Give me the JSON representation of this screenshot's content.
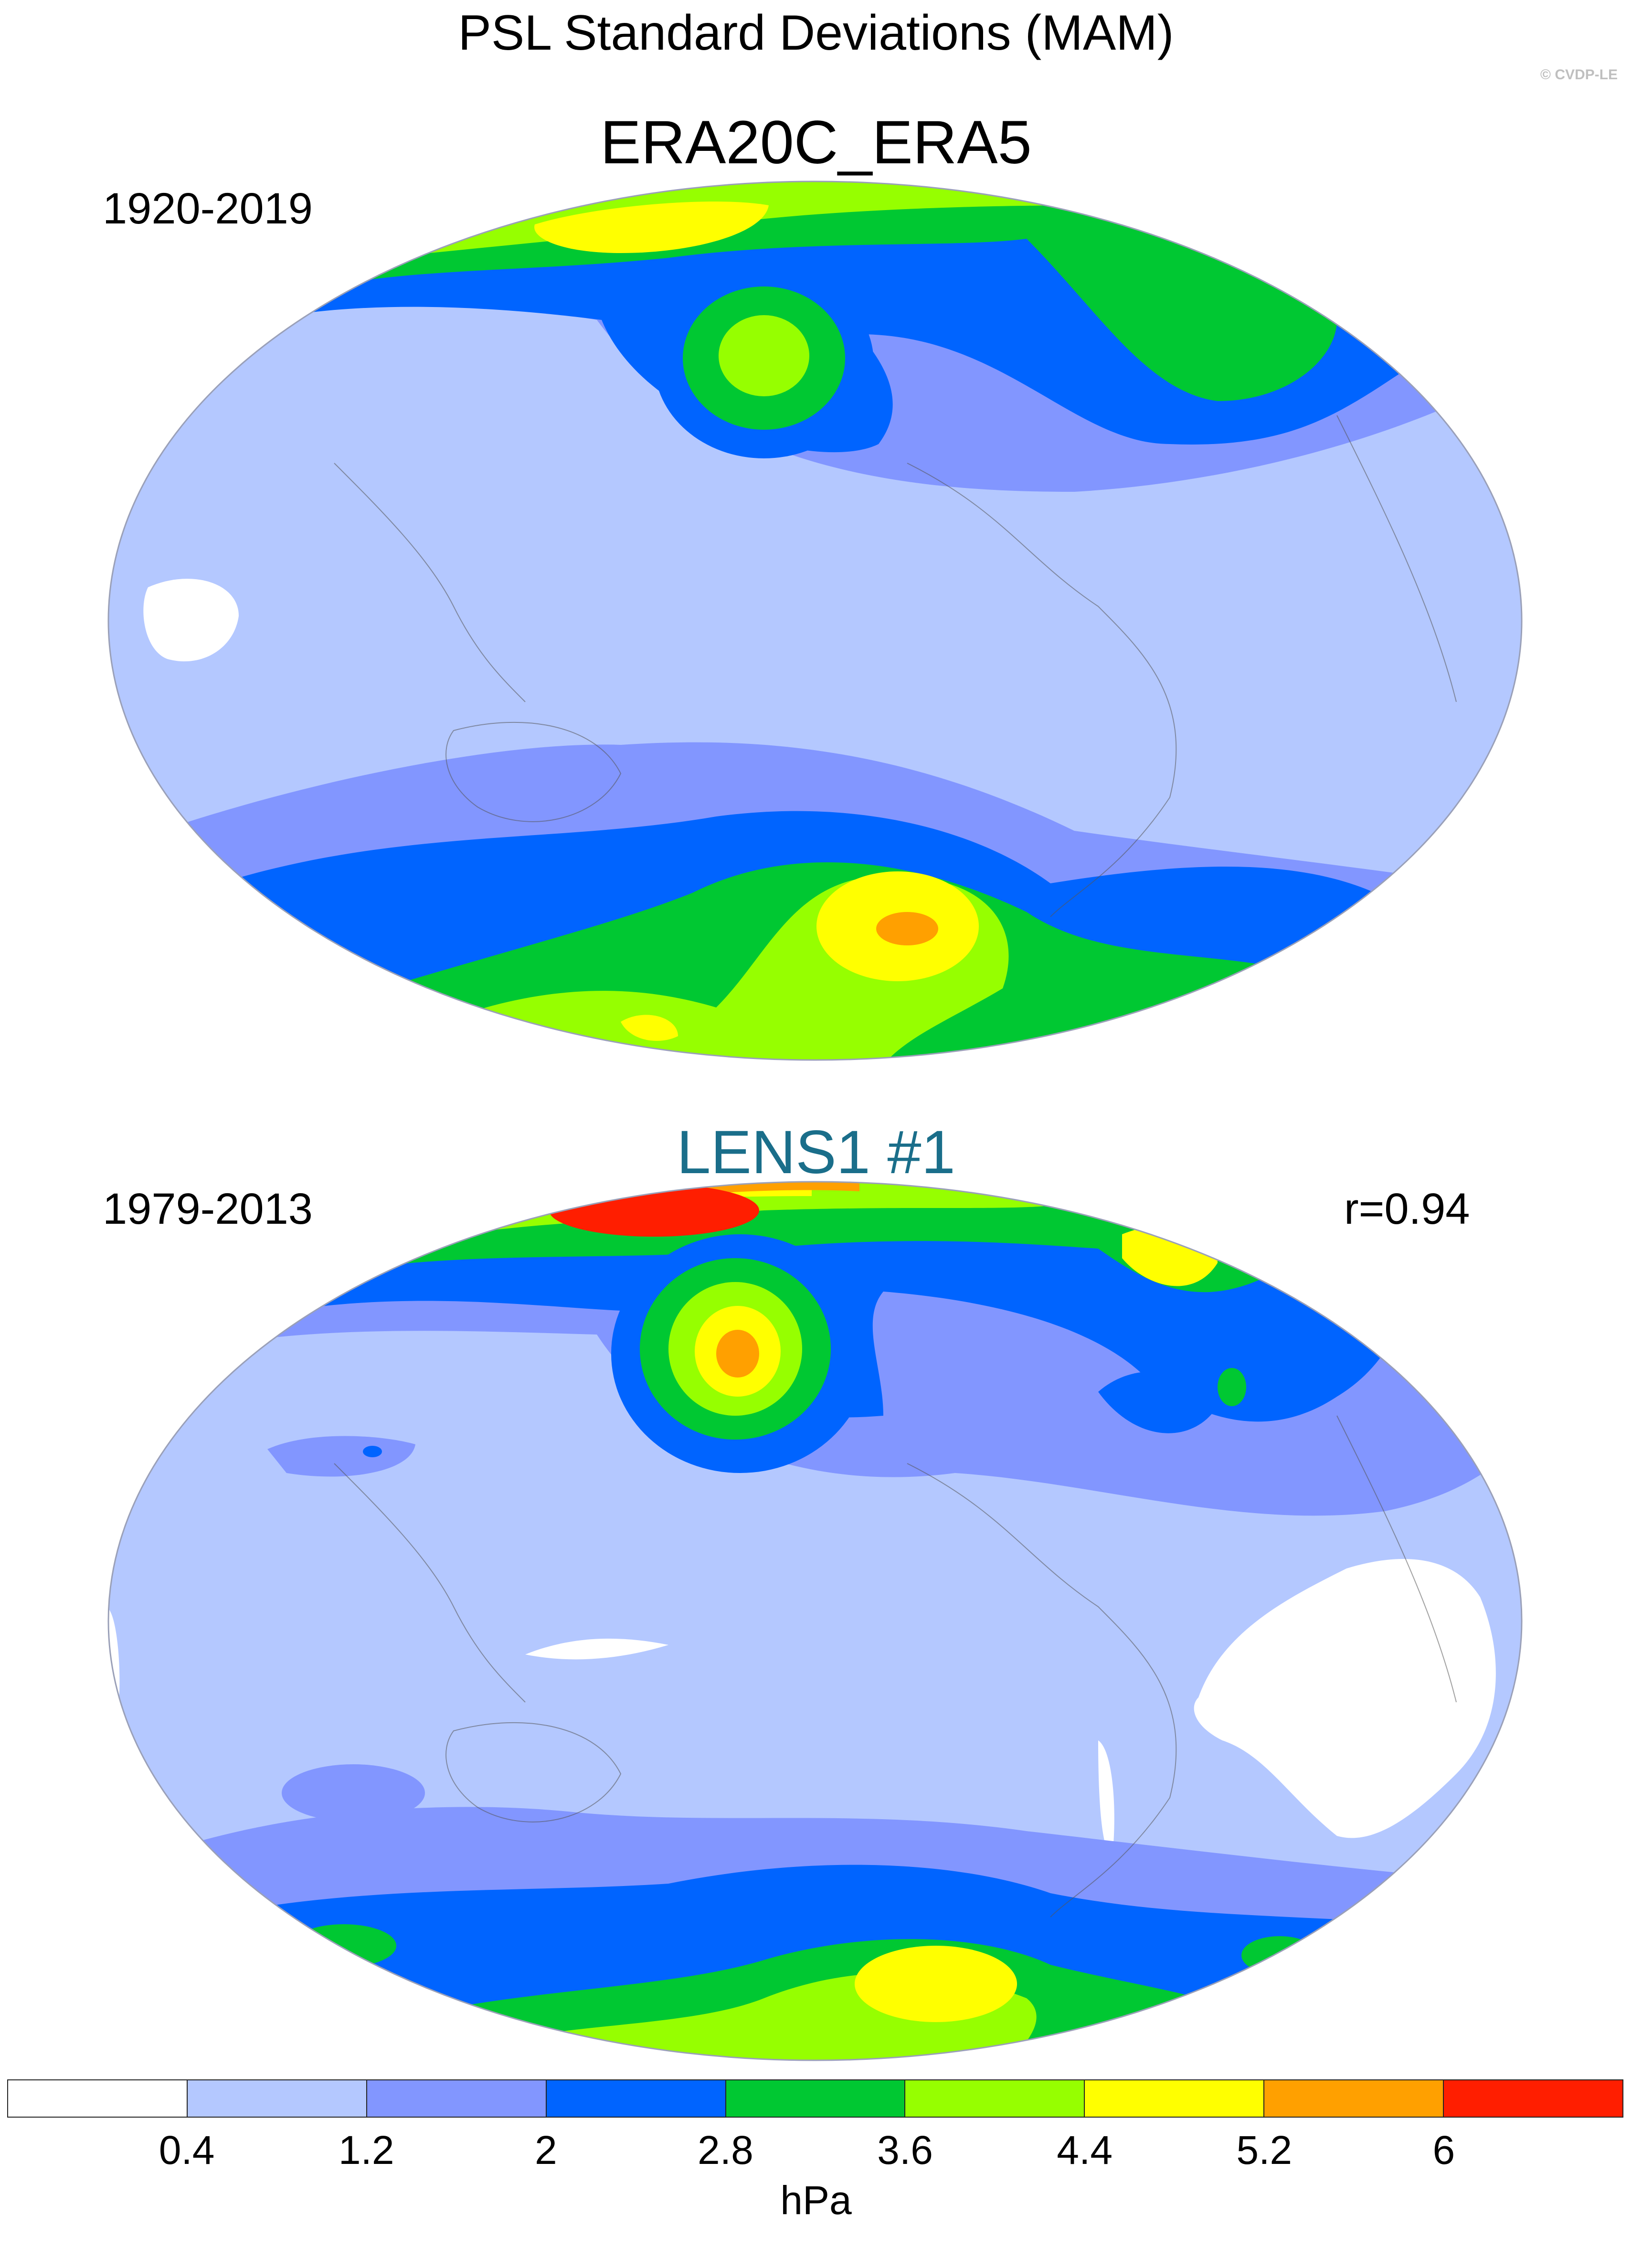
{
  "title": "PSL Standard Deviations (MAM)",
  "credit": "© CVDP-LE",
  "panels": [
    {
      "name": "ERA20C_ERA5",
      "period": "1920-2019",
      "correlation": "",
      "name_color": "#000000"
    },
    {
      "name": "LENS1 #1",
      "period": "1979-2013",
      "correlation": "r=0.94",
      "name_color": "#1a6e8a"
    }
  ],
  "colorbar": {
    "colors": [
      "#ffffff",
      "#b4c8ff",
      "#8296ff",
      "#0064ff",
      "#00c832",
      "#96ff00",
      "#ffff00",
      "#ffa000",
      "#ff1e00"
    ],
    "labels": [
      "0.4",
      "1.2",
      "2",
      "2.8",
      "3.6",
      "4.4",
      "5.2",
      "6"
    ],
    "units": "hPa"
  }
}
